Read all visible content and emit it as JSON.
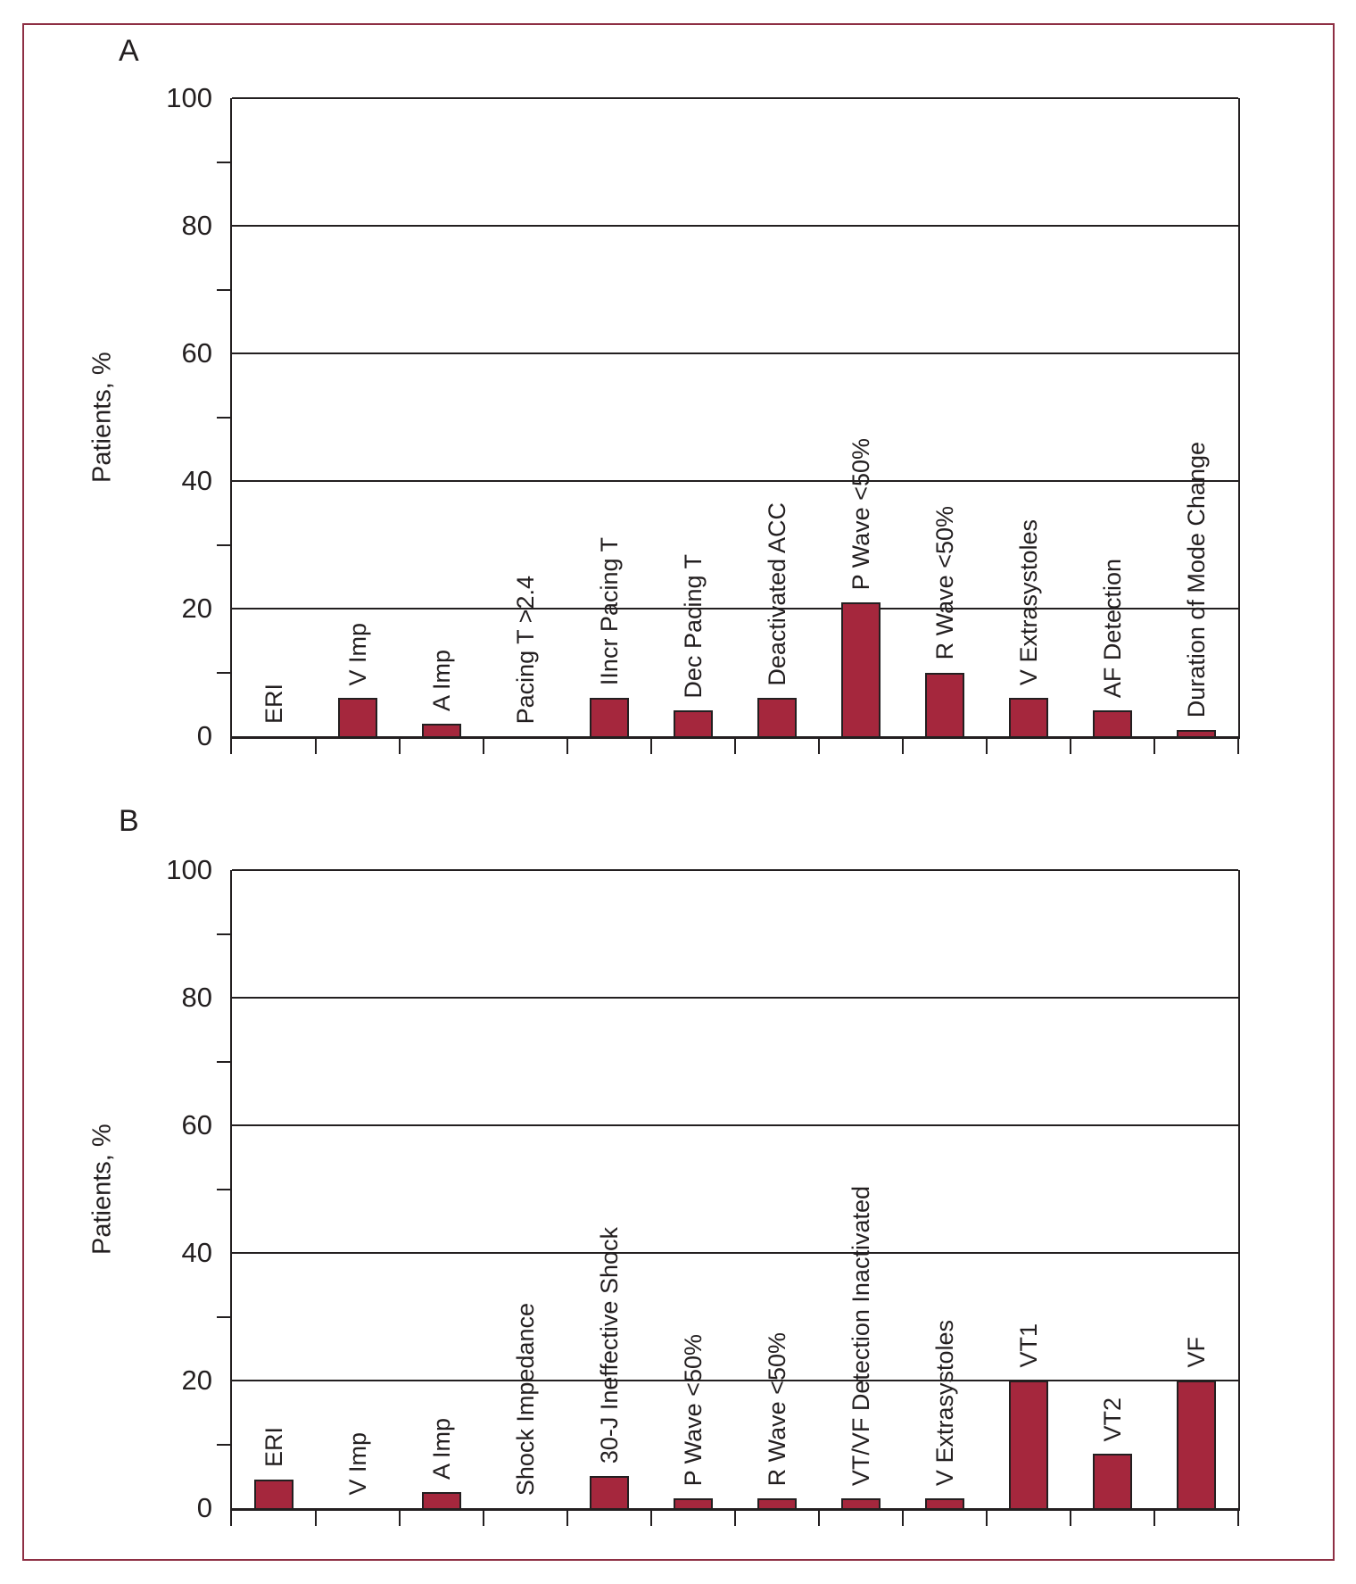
{
  "figure": {
    "bar_color": "#A5273D",
    "border_color": "#8E2F44",
    "axis_color": "#231F20"
  },
  "chart_data": [
    {
      "panel": "A",
      "type": "bar",
      "title": "",
      "xlabel": "",
      "ylabel": "Patients, %",
      "ylim": [
        0,
        100
      ],
      "yticks": [
        0,
        20,
        40,
        60,
        80,
        100
      ],
      "minor_yticks": [
        10,
        30,
        50,
        70,
        90
      ],
      "grid": "horizontal-major",
      "legend": "none",
      "categories": [
        "ERI",
        "V Imp",
        "A Imp",
        "Pacing T >2.4",
        "IIncr Pacing T",
        "Dec Pacing T",
        "Deactivated ACC",
        "P Wave <50%",
        "R Wave <50%",
        "V Extrasystoles",
        "AF Detection",
        "Duration of Mode Change"
      ],
      "values": [
        0,
        6,
        2,
        0,
        6,
        4,
        6,
        21,
        10,
        6,
        4,
        1
      ]
    },
    {
      "panel": "B",
      "type": "bar",
      "title": "",
      "xlabel": "",
      "ylabel": "Patients, %",
      "ylim": [
        0,
        100
      ],
      "yticks": [
        0,
        20,
        40,
        60,
        80,
        100
      ],
      "minor_yticks": [
        10,
        30,
        50,
        70,
        90
      ],
      "grid": "horizontal-major",
      "legend": "none",
      "categories": [
        "ERI",
        "V Imp",
        "A Imp",
        "Shock Impedance",
        "30-J Ineffective Shock",
        "P Wave <50%",
        "R Wave <50%",
        "VT/VF Detection Inactivated",
        "V Extrasystoles",
        "VT1",
        "VT2",
        "VF"
      ],
      "values": [
        4.5,
        0,
        2.5,
        0,
        5,
        1.5,
        1.5,
        1.5,
        1.5,
        20,
        8.5,
        20
      ]
    }
  ]
}
